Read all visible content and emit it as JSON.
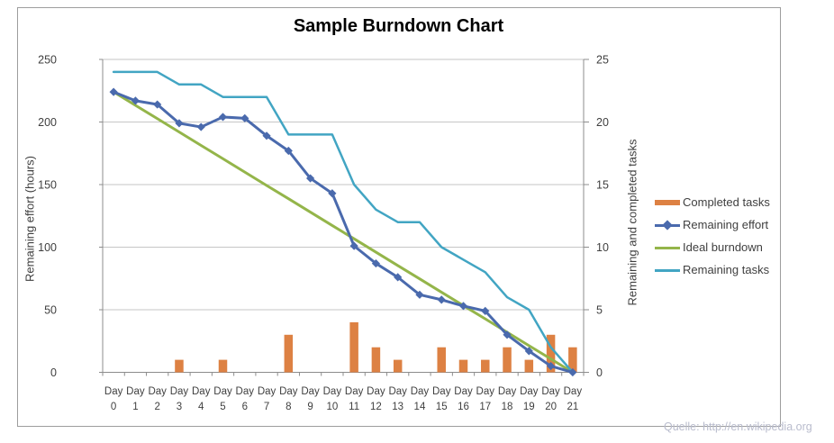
{
  "title": "Sample Burndown Chart",
  "watermark": "Quelle: http://en.wikipedia.org",
  "chart_data": {
    "type": "combo",
    "title": "Sample Burndown Chart",
    "categories_prefix": "Day",
    "categories": [
      0,
      1,
      2,
      3,
      4,
      5,
      6,
      7,
      8,
      9,
      10,
      11,
      12,
      13,
      14,
      15,
      16,
      17,
      18,
      19,
      20,
      21
    ],
    "left_axis": {
      "label": "Remaining effort (hours)",
      "min": 0,
      "max": 250,
      "step": 50,
      "ticks": [
        0,
        50,
        100,
        150,
        200,
        250
      ]
    },
    "right_axis": {
      "label": "Remaining and completed tasks",
      "min": 0,
      "max": 25,
      "step": 5,
      "ticks": [
        0,
        5,
        10,
        15,
        20,
        25
      ]
    },
    "grid": true,
    "legend_position": "right",
    "colors": {
      "bars": "#dd8143",
      "effort": "#4a6aad",
      "ideal": "#94b54a",
      "tasks": "#42a5c3"
    },
    "series": [
      {
        "name": "Completed tasks",
        "type": "bar",
        "axis": "right",
        "color": "#dd8143",
        "values": [
          0,
          0,
          0,
          1,
          0,
          1,
          0,
          0,
          3,
          0,
          0,
          4,
          2,
          1,
          0,
          2,
          1,
          1,
          2,
          1,
          3,
          2
        ]
      },
      {
        "name": "Remaining effort",
        "type": "line",
        "marker": "diamond",
        "axis": "left",
        "color": "#4a6aad",
        "values": [
          224,
          217,
          214,
          199,
          196,
          204,
          203,
          189,
          177,
          155,
          143,
          101,
          87,
          76,
          62,
          58,
          53,
          49,
          30,
          17,
          5,
          0
        ]
      },
      {
        "name": "Ideal burndown",
        "type": "line",
        "axis": "left",
        "color": "#94b54a",
        "values": [
          224,
          213.3,
          202.7,
          192,
          181.3,
          170.7,
          160,
          149.3,
          138.7,
          128,
          117.3,
          106.7,
          96,
          85.3,
          74.7,
          64,
          53.3,
          42.7,
          32,
          21.3,
          10.7,
          0
        ]
      },
      {
        "name": "Remaining tasks",
        "type": "line",
        "axis": "right",
        "color": "#42a5c3",
        "values": [
          24,
          24,
          24,
          23,
          23,
          22,
          22,
          22,
          19,
          19,
          19,
          15,
          13,
          12,
          12,
          10,
          9,
          8,
          6,
          5,
          2,
          0
        ]
      }
    ]
  }
}
